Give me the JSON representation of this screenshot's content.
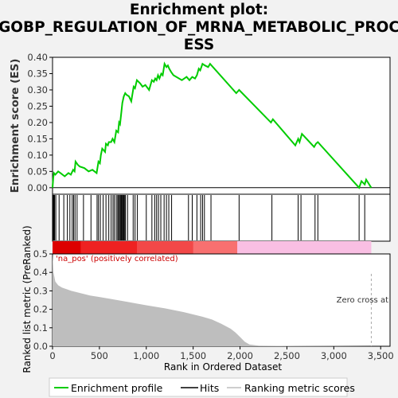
{
  "chart_data": {
    "type": "line",
    "title_lines": [
      "Enrichment plot:",
      "GOBP_REGULATION_OF_MRNA_METABOLIC_PROC",
      "ESS"
    ],
    "es_panel": {
      "ylabel": "Enrichment score (ES)",
      "ylim": [
        -0.02,
        0.4
      ],
      "yticks": [
        "0.00",
        "0.05",
        "0.10",
        "0.15",
        "0.20",
        "0.25",
        "0.30",
        "0.35",
        "0.40"
      ],
      "ytick_values": [
        0,
        0.05,
        0.1,
        0.15,
        0.2,
        0.25,
        0.3,
        0.35,
        0.4
      ],
      "line_color": "#00cc00",
      "series": [
        {
          "name": "Enrichment profile",
          "x": [
            0,
            8,
            15,
            30,
            60,
            85,
            130,
            170,
            195,
            220,
            235,
            245,
            270,
            290,
            340,
            385,
            425,
            470,
            490,
            505,
            515,
            530,
            545,
            560,
            570,
            590,
            600,
            625,
            640,
            660,
            680,
            700,
            710,
            720,
            735,
            745,
            760,
            775,
            790,
            815,
            840,
            865,
            880,
            900,
            935,
            960,
            990,
            1030,
            1060,
            1080,
            1095,
            1110,
            1125,
            1140,
            1160,
            1175,
            1195,
            1215,
            1230,
            1245,
            1265,
            1290,
            1380,
            1430,
            1460,
            1490,
            1520,
            1540,
            1560,
            1575,
            1600,
            1625,
            1660,
            1680,
            1960,
            1990,
            2330,
            2350,
            2590,
            2620,
            2635,
            2660,
            2790,
            2810,
            2830,
            3270,
            3295,
            3330,
            3345,
            3400
          ],
          "y": [
            0.0,
            0.03,
            0.045,
            0.04,
            0.05,
            0.045,
            0.035,
            0.045,
            0.04,
            0.055,
            0.05,
            0.08,
            0.07,
            0.065,
            0.06,
            0.05,
            0.055,
            0.045,
            0.08,
            0.075,
            0.1,
            0.12,
            0.115,
            0.11,
            0.135,
            0.13,
            0.14,
            0.14,
            0.15,
            0.14,
            0.175,
            0.17,
            0.2,
            0.195,
            0.235,
            0.26,
            0.28,
            0.29,
            0.285,
            0.28,
            0.265,
            0.31,
            0.305,
            0.33,
            0.32,
            0.31,
            0.315,
            0.3,
            0.33,
            0.325,
            0.335,
            0.33,
            0.345,
            0.335,
            0.35,
            0.345,
            0.38,
            0.37,
            0.375,
            0.365,
            0.355,
            0.345,
            0.33,
            0.34,
            0.33,
            0.34,
            0.335,
            0.345,
            0.365,
            0.36,
            0.38,
            0.375,
            0.37,
            0.38,
            0.29,
            0.3,
            0.2,
            0.21,
            0.13,
            0.15,
            0.14,
            0.165,
            0.125,
            0.135,
            0.14,
            0.0,
            0.02,
            0.01,
            0.025,
            0.0
          ]
        }
      ]
    },
    "hits_panel": {
      "hits": [
        5,
        10,
        16,
        22,
        35,
        70,
        120,
        158,
        185,
        210,
        225,
        240,
        262,
        330,
        410,
        475,
        490,
        510,
        540,
        570,
        600,
        625,
        645,
        660,
        680,
        695,
        705,
        715,
        725,
        735,
        742,
        750,
        760,
        770,
        778,
        800,
        860,
        880,
        905,
        1000,
        1060,
        1090,
        1110,
        1130,
        1155,
        1190,
        1215,
        1240,
        1270,
        1450,
        1490,
        1540,
        1580,
        1600,
        1620,
        1690,
        1990,
        2340,
        2620,
        2650,
        2800,
        2830,
        3270,
        3330
      ]
    },
    "rank_panel": {
      "xlabel": "Rank in Ordered Dataset",
      "ylabel": "Ranked list metric (PreRanked)",
      "xlim": [
        0,
        3600
      ],
      "xticks": [
        "0",
        "500",
        "1,000",
        "1,500",
        "2,000",
        "2,500",
        "3,000",
        "3,500"
      ],
      "xtick_values": [
        0,
        500,
        1000,
        1500,
        2000,
        2500,
        3000,
        3500
      ],
      "ylim": [
        0,
        0.5
      ],
      "yticks": [
        "0.0",
        "0.1",
        "0.2",
        "0.3",
        "0.4",
        "0.5"
      ],
      "ytick_values": [
        0,
        0.1,
        0.2,
        0.3,
        0.4,
        0.5
      ],
      "metric_x": [
        0,
        10,
        30,
        60,
        100,
        200,
        400,
        600,
        800,
        1000,
        1200,
        1400,
        1600,
        1700,
        1800,
        1900,
        1950,
        2000,
        2050,
        2100,
        2200,
        2400,
        3000,
        3400
      ],
      "metric_y": [
        0.5,
        0.4,
        0.35,
        0.33,
        0.318,
        0.3,
        0.275,
        0.258,
        0.24,
        0.222,
        0.205,
        0.185,
        0.16,
        0.145,
        0.122,
        0.095,
        0.075,
        0.05,
        0.025,
        0.01,
        0.003,
        0.002,
        0.001,
        0.0
      ],
      "fill_color": "#bebebe",
      "heat_split_rank": 1970,
      "heat_end_rank": 3400,
      "pos_label": "'na_pos' (positively correlated)",
      "pos_label_color": "#cc0000",
      "zero_cross_label": "Zero cross at",
      "zero_cross_rank": 3400
    },
    "legend": {
      "items": [
        "Enrichment profile",
        "Hits",
        "Ranking metric scores"
      ],
      "placement": "bottom"
    }
  }
}
